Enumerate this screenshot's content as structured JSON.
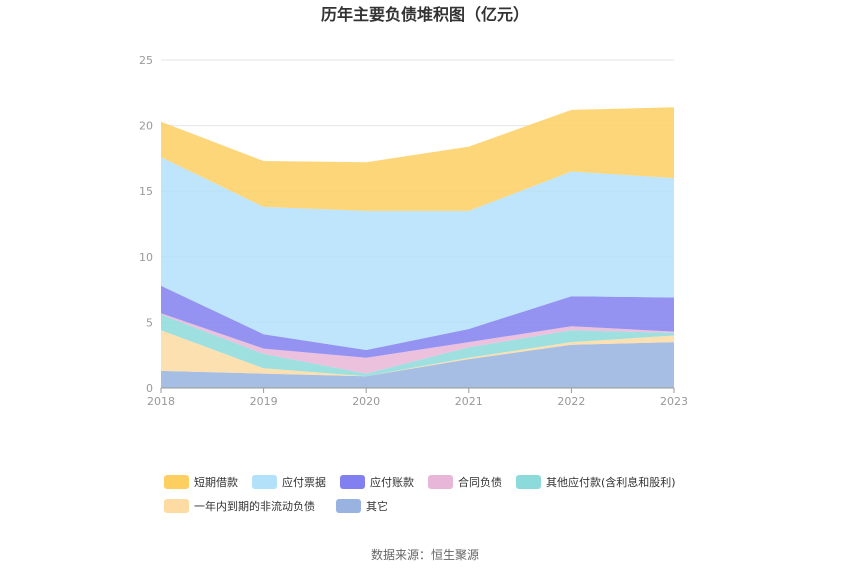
{
  "chart_data": {
    "type": "area",
    "stacked": true,
    "title": "历年主要负债堆积图（亿元）",
    "x": [
      "2018",
      "2019",
      "2020",
      "2021",
      "2022",
      "2023"
    ],
    "ylim": [
      0,
      25
    ],
    "yticks": [
      "0",
      "5",
      "10",
      "15",
      "20",
      "25"
    ],
    "grid": true,
    "legend_position": "bottom",
    "series": [
      {
        "name": "其它",
        "color": "#98B3DF",
        "values": [
          1.3,
          1.1,
          0.9,
          2.2,
          3.3,
          3.5
        ]
      },
      {
        "name": "一年内到期的非流动负债",
        "color": "#FDDBA2",
        "values": [
          3.1,
          0.4,
          0.0,
          0.1,
          0.2,
          0.5
        ]
      },
      {
        "name": "其他应付款(含利息和股利)",
        "color": "#8DDADA",
        "values": [
          1.2,
          1.1,
          0.2,
          0.8,
          0.9,
          0.2
        ]
      },
      {
        "name": "合同负债",
        "color": "#E8B6D8",
        "values": [
          0.1,
          0.4,
          1.2,
          0.4,
          0.3,
          0.1
        ]
      },
      {
        "name": "应付账款",
        "color": "#8280F0",
        "values": [
          2.1,
          1.1,
          0.6,
          1.0,
          2.3,
          2.6
        ]
      },
      {
        "name": "应付票据",
        "color": "#B3E1FA",
        "values": [
          9.8,
          9.7,
          10.6,
          9.0,
          9.5,
          9.1
        ]
      },
      {
        "name": "短期借款",
        "color": "#FDCF61",
        "values": [
          2.7,
          3.5,
          3.7,
          4.9,
          4.7,
          5.4
        ]
      }
    ],
    "legend_order": [
      "短期借款",
      "应付票据",
      "应付账款",
      "合同负债",
      "其他应付款(含利息和股利)",
      "一年内到期的非流动负债",
      "其它"
    ]
  },
  "source_text": "数据来源：恒生聚源"
}
